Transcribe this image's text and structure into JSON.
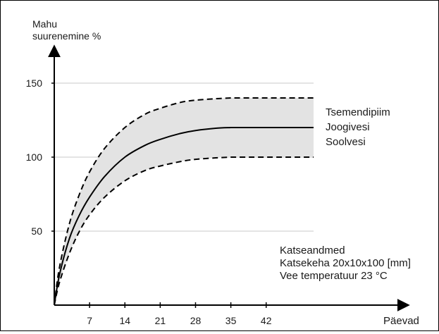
{
  "chart_data": {
    "type": "line",
    "ylabel_lines": [
      "Mahu",
      "suurenemine %"
    ],
    "xlabel": "Päevad",
    "x_ticks": [
      7,
      14,
      21,
      28,
      35,
      42
    ],
    "y_ticks": [
      50,
      100,
      150
    ],
    "xlim": [
      0,
      85
    ],
    "ylim": [
      0,
      160
    ],
    "grid": true,
    "shaded_band": {
      "lower_series": "lower",
      "upper_series": "upper",
      "color": "#e3e3e3"
    },
    "series": [
      {
        "id": "upper",
        "style": "dashed",
        "color": "#000000",
        "x": [
          0,
          1,
          3,
          5,
          7,
          10,
          14,
          18,
          21,
          25,
          28,
          32,
          35,
          36,
          42,
          50,
          60,
          70
        ],
        "y": [
          0,
          25,
          55,
          75,
          90,
          106,
          120,
          129,
          133,
          137,
          138.5,
          139.5,
          140,
          140,
          140,
          140,
          140,
          140
        ]
      },
      {
        "id": "middle",
        "style": "solid",
        "color": "#000000",
        "x": [
          0,
          1,
          3,
          5,
          7,
          10,
          14,
          18,
          21,
          25,
          28,
          32,
          35,
          36,
          42,
          50,
          60,
          70
        ],
        "y": [
          0,
          20,
          45,
          61,
          73,
          87,
          100,
          108,
          112,
          116,
          118,
          119.5,
          120,
          120,
          120,
          120,
          120,
          120
        ]
      },
      {
        "id": "lower",
        "style": "dashed",
        "color": "#000000",
        "x": [
          0,
          1,
          3,
          5,
          7,
          10,
          14,
          18,
          21,
          25,
          28,
          32,
          35,
          36,
          42,
          50,
          60,
          70
        ],
        "y": [
          0,
          15,
          35,
          50,
          61,
          73,
          84,
          91,
          94,
          97,
          98.5,
          99.5,
          100,
          100,
          100,
          100,
          100,
          100
        ]
      }
    ],
    "legend_lines": [
      "Tsemendipiim",
      "Joogivesi",
      "Soolvesi"
    ],
    "legend_position": "right",
    "annotation_lines": [
      "Katseandmed",
      "Katsekeha 20x10x100 [mm]",
      "Vee temperatuur 23 °C"
    ]
  }
}
